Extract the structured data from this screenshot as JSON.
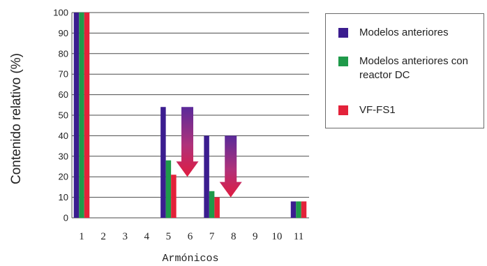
{
  "chart_data": {
    "type": "bar",
    "xlabel": "Armónicos",
    "ylabel": "Contenido relativo (%)",
    "ylim": [
      0,
      100
    ],
    "yticks": [
      0,
      10,
      20,
      30,
      40,
      50,
      60,
      70,
      80,
      90,
      100
    ],
    "categories": [
      "1",
      "2",
      "3",
      "4",
      "5",
      "6",
      "7",
      "8",
      "9",
      "10",
      "11"
    ],
    "grid": "horizontal",
    "legend_position": "right",
    "series": [
      {
        "name": "Modelos anteriores",
        "color": "#3b1d8f",
        "values": [
          100,
          0,
          0,
          0,
          54,
          0,
          40,
          0,
          0,
          0,
          8
        ]
      },
      {
        "name": "Modelos anteriores con reactor DC",
        "color": "#1f9a4a",
        "values": [
          100,
          0,
          0,
          0,
          28,
          0,
          13,
          0,
          0,
          0,
          8
        ]
      },
      {
        "name": "VF-FS1",
        "color": "#e3223a",
        "values": [
          100,
          0,
          0,
          0,
          21,
          0,
          10,
          0,
          0,
          0,
          8
        ]
      }
    ],
    "annotations": [
      {
        "type": "reduction-arrow",
        "category": "6",
        "from": 54,
        "to": 20
      },
      {
        "type": "reduction-arrow",
        "category": "8",
        "from": 40,
        "to": 10
      }
    ]
  }
}
